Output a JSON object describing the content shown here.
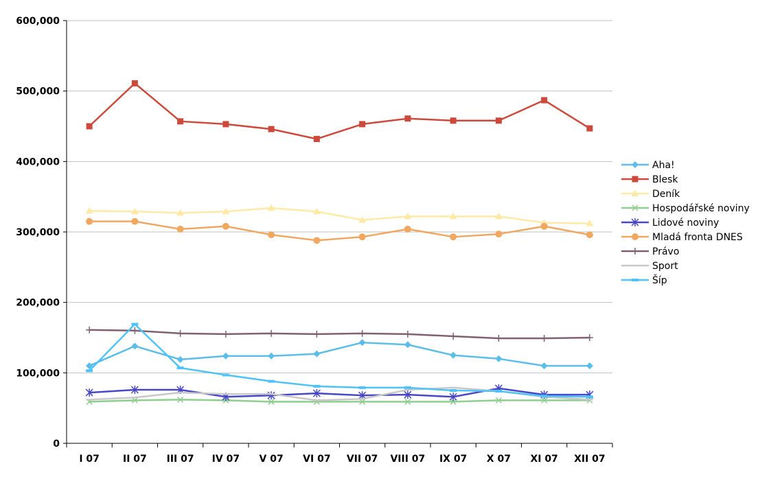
{
  "chart_data": {
    "type": "line",
    "title": "",
    "xlabel": "",
    "ylabel": "",
    "categories": [
      "I 07",
      "II 07",
      "III 07",
      "IV 07",
      "V 07",
      "VI 07",
      "VII 07",
      "VIII 07",
      "IX 07",
      "X 07",
      "XI 07",
      "XII 07"
    ],
    "ylim": [
      0,
      600000
    ],
    "yticks": [
      0,
      100000,
      200000,
      300000,
      400000,
      500000,
      600000
    ],
    "ytick_labels": [
      "0",
      "100,000",
      "200,000",
      "300,000",
      "400,000",
      "500,000",
      "600,000"
    ],
    "grid": true,
    "legend_position": "right",
    "series": [
      {
        "name": "Aha!",
        "color": "#5bbde8",
        "marker": "diamond",
        "values": [
          110000,
          138000,
          119000,
          124000,
          124000,
          127000,
          143000,
          140000,
          125000,
          120000,
          110000,
          110000
        ]
      },
      {
        "name": "Blesk",
        "color": "#cc4a3c",
        "marker": "square",
        "values": [
          450000,
          511000,
          457000,
          453000,
          446000,
          432000,
          453000,
          461000,
          458000,
          458000,
          487000,
          447000
        ]
      },
      {
        "name": "Deník",
        "color": "#ffe9a6",
        "marker": "triangle",
        "values": [
          330000,
          329000,
          327000,
          329000,
          334000,
          329000,
          317000,
          322000,
          322000,
          322000,
          313000,
          312000
        ]
      },
      {
        "name": "Hospodářské noviny",
        "color": "#8fce8f",
        "marker": "x",
        "values": [
          59000,
          61000,
          62000,
          61000,
          59000,
          59000,
          59000,
          59000,
          59000,
          61000,
          61000,
          61000
        ]
      },
      {
        "name": "Lidové noviny",
        "color": "#4747c8",
        "marker": "star",
        "values": [
          72000,
          76000,
          76000,
          66000,
          68000,
          71000,
          68000,
          69000,
          66000,
          78000,
          69000,
          69000
        ]
      },
      {
        "name": "Mladá fronta DNES",
        "color": "#f0a860",
        "marker": "circle",
        "values": [
          315000,
          315000,
          304000,
          308000,
          296000,
          288000,
          293000,
          304000,
          293000,
          297000,
          308000,
          296000
        ]
      },
      {
        "name": "Právo",
        "color": "#806070",
        "marker": "plus",
        "values": [
          161000,
          160000,
          156000,
          155000,
          156000,
          155000,
          156000,
          155000,
          152000,
          149000,
          149000,
          150000
        ]
      },
      {
        "name": "Sport",
        "color": "#c8c8c8",
        "marker": "dash",
        "values": [
          62000,
          65000,
          72000,
          70000,
          70000,
          61000,
          63000,
          76000,
          79000,
          74000,
          66000,
          62000
        ]
      },
      {
        "name": "Šíp",
        "color": "#4fc3f7",
        "marker": "bar",
        "values": [
          103000,
          169000,
          107000,
          97000,
          88000,
          81000,
          79000,
          79000,
          75000,
          74000,
          67000,
          66000
        ]
      }
    ]
  }
}
